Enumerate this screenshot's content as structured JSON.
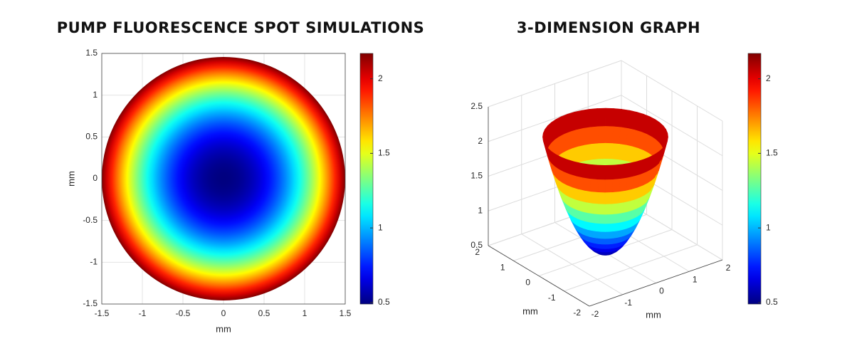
{
  "chart_data": [
    {
      "type": "heatmap",
      "title": "PUMP FLUORESCENCE SPOT SIMULATIONS",
      "xlabel": "mm",
      "ylabel": "mm",
      "xlim": [
        -1.5,
        1.5
      ],
      "ylim": [
        -1.5,
        1.5
      ],
      "xticks": [
        -1.5,
        -1,
        -0.5,
        0,
        0.5,
        1,
        1.5
      ],
      "yticks": [
        -1.5,
        -1,
        -0.5,
        0,
        0.5,
        1,
        1.5
      ],
      "grid": true,
      "colormap": "jet",
      "clim": [
        0.49,
        2.17
      ],
      "cticks": [
        0.5,
        1,
        1.5,
        2
      ]
    },
    {
      "type": "surface",
      "title": "3-DIMENSION GRAPH",
      "xlabel": "mm",
      "ylabel": "mm",
      "xlim": [
        -2,
        2
      ],
      "ylim": [
        -2,
        2
      ],
      "zlim": [
        0.5,
        2.5
      ],
      "xticks": [
        -2,
        -1,
        0,
        1,
        2
      ],
      "yticks": [
        -2,
        -1,
        0,
        1,
        2
      ],
      "zticks": [
        0.5,
        1,
        1.5,
        2,
        2.5
      ],
      "grid": true,
      "colormap": "jet",
      "clim": [
        0.49,
        2.17
      ],
      "cticks": [
        0.5,
        1,
        1.5,
        2
      ]
    }
  ]
}
